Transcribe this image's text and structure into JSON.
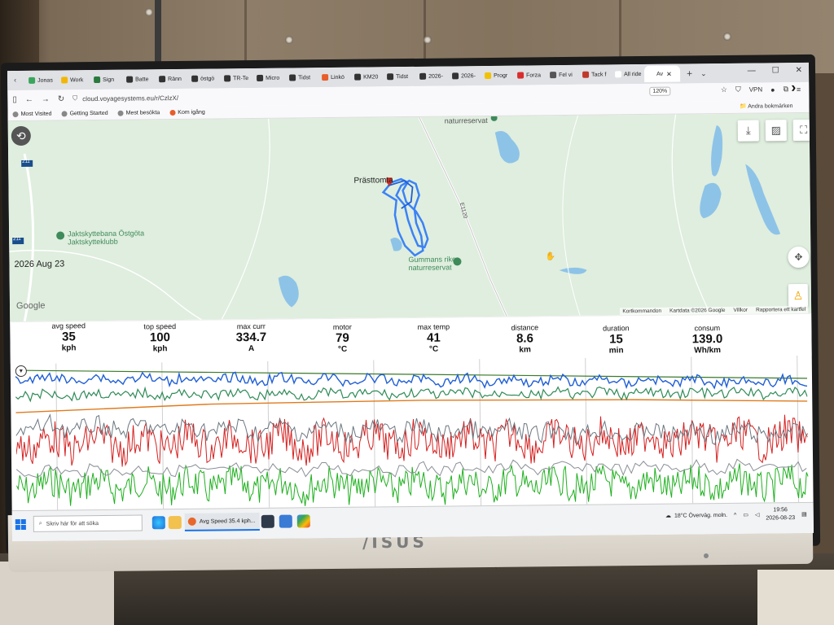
{
  "browser": {
    "tabs": [
      {
        "label": "Jonas",
        "color": "#3aa55c"
      },
      {
        "label": "Work",
        "color": "#f2b705"
      },
      {
        "label": "Sign",
        "color": "#2b7a3d"
      },
      {
        "label": "Batte",
        "color": "#333333"
      },
      {
        "label": "Ränn",
        "color": "#333333"
      },
      {
        "label": "östgö",
        "color": "#333333"
      },
      {
        "label": "TR-Te",
        "color": "#333333"
      },
      {
        "label": "Micro",
        "color": "#333333"
      },
      {
        "label": "Tidst",
        "color": "#333333"
      },
      {
        "label": "Linkö",
        "color": "#e85d2a"
      },
      {
        "label": "KM20",
        "color": "#333333"
      },
      {
        "label": "Tidst",
        "color": "#333333"
      },
      {
        "label": "2026-",
        "color": "#333333"
      },
      {
        "label": "2026-",
        "color": "#333333"
      },
      {
        "label": "Progr",
        "color": "#f2c200"
      },
      {
        "label": "Forza",
        "color": "#d92d2d"
      },
      {
        "label": "Fel vi",
        "color": "#555555"
      },
      {
        "label": "Tack f",
        "color": "#c0392b"
      },
      {
        "label": "All ride lo",
        "color": "#ffffff"
      },
      {
        "label": "Av",
        "color": "#ffffff",
        "active": true
      }
    ],
    "url": "cloud.voyagesystems.eu/r/CzlzX/",
    "zoom": "120%",
    "vpn_label": "VPN",
    "bookmarks": [
      "Most Visited",
      "Getting Started",
      "Mest besökta",
      "Kom igång"
    ],
    "other_bookmarks": "Andra bokmärken"
  },
  "map": {
    "labels": {
      "top_reserve": "naturreservat",
      "town": "Prästtomta",
      "road": "E1120",
      "shooting_club_1": "Jaktskyttebana Östgöta",
      "shooting_club_2": "Jaktskytteklubb",
      "reserve_1": "Gummans rike",
      "reserve_2": "naturreservat",
      "route_211_a": "211",
      "route_211_b": "211"
    },
    "ride_date": "2026 Aug 23",
    "google": "Google",
    "footer": [
      "Kortkommandon",
      "Kartdata ©2026 Google",
      "Villkor",
      "Rapportera ett kartfel"
    ],
    "route_color": "#3b82f6",
    "marker_color": "#d93025"
  },
  "stats": [
    {
      "label": "avg speed",
      "value": "35",
      "unit": "kph"
    },
    {
      "label": "top speed",
      "value": "100",
      "unit": "kph"
    },
    {
      "label": "max curr",
      "value": "334.7",
      "unit": "A"
    },
    {
      "label": "motor",
      "value": "79",
      "unit": "°C"
    },
    {
      "label": "max temp",
      "value": "41",
      "unit": "°C"
    },
    {
      "label": "distance",
      "value": "8.6",
      "unit": "km"
    },
    {
      "label": "duration",
      "value": "15",
      "unit": "min"
    },
    {
      "label": "consum",
      "value": "139.0",
      "unit": "Wh/km"
    }
  ],
  "chart_colors": {
    "blue": "#1f5fd6",
    "teal": "#2e8b57",
    "orange": "#e07b1e",
    "gray": "#6c7780",
    "red": "#d62020",
    "green": "#1fb01f",
    "olive": "#3a7a2a"
  },
  "taskbar": {
    "search_placeholder": "Skriv här för att söka",
    "firefox_item": "Avg Speed 35.4 kph...",
    "weather": "18°C Överväg. moln.",
    "time": "19:56",
    "date": "2026-08-23"
  },
  "monitor": {
    "brand": "/ISUS"
  }
}
